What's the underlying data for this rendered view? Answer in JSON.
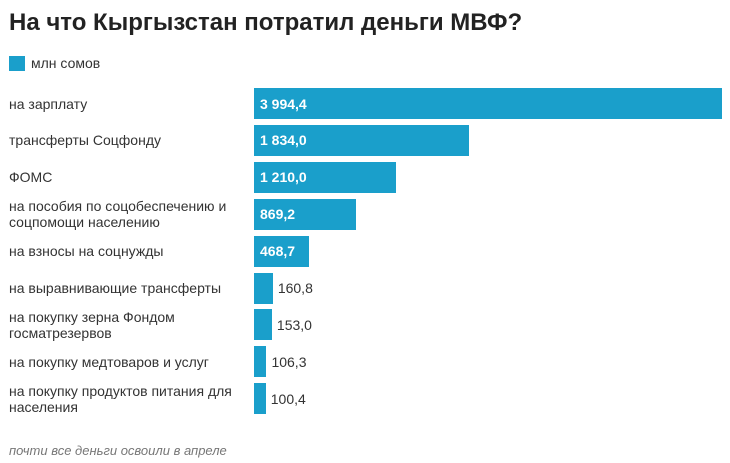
{
  "chart_data": {
    "type": "bar",
    "orientation": "horizontal",
    "title": "На что Кыргызстан потратил деньги МВФ?",
    "legend": {
      "placement": "top-left",
      "entries": [
        "млн сомов"
      ]
    },
    "categories": [
      "на зарплату",
      "трансферты Соцфонду",
      "ФОМС",
      "на пособия по соцобеспечению и соцпомощи населению",
      "на взносы на соцнужды",
      "на выравнивающие трансферты",
      "на покупку зерна Фондом госматрезервов",
      "на покупку медтоваров и услуг",
      "на покупку продуктов питания для населения"
    ],
    "series": [
      {
        "name": "млн сомов",
        "values": [
          3994.4,
          1834.0,
          1210.0,
          869.2,
          468.7,
          160.8,
          153.0,
          106.3,
          100.4
        ],
        "labels": [
          "3 994,4",
          "1 834,0",
          "1 210,0",
          "869,2",
          "468,7",
          "160,8",
          "153,0",
          "106,3",
          "100,4"
        ]
      }
    ],
    "xlim": [
      0,
      3994.4
    ],
    "grid": false,
    "color": "#1a9fcb"
  },
  "note": "почти все деньги освоили в апреле"
}
